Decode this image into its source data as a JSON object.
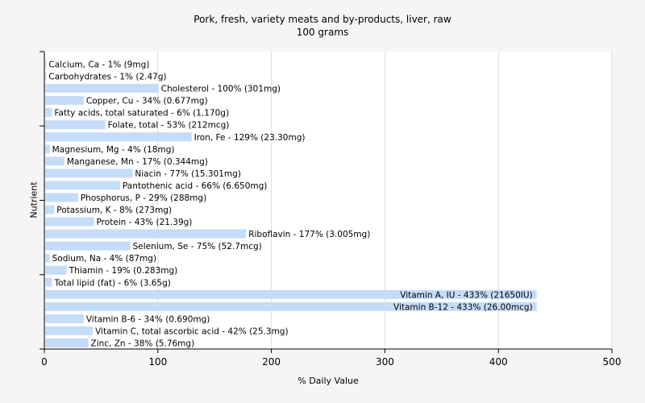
{
  "chart_data": {
    "type": "bar",
    "orientation": "horizontal",
    "title": "Pork, fresh, variety meats and by-products, liver, raw",
    "subtitle": "100 grams",
    "xlabel": "% Daily Value",
    "ylabel": "Nutrient",
    "xlim": [
      0,
      500
    ],
    "xticks": [
      0,
      100,
      200,
      300,
      400,
      500
    ],
    "grid": "vertical",
    "bar_color": "#c5dcf8",
    "categories": [
      "Calcium, Ca",
      "Carbohydrates",
      "Cholesterol",
      "Copper, Cu",
      "Fatty acids, total saturated",
      "Folate, total",
      "Iron, Fe",
      "Magnesium, Mg",
      "Manganese, Mn",
      "Niacin",
      "Pantothenic acid",
      "Phosphorus, P",
      "Potassium, K",
      "Protein",
      "Riboflavin",
      "Selenium, Se",
      "Sodium, Na",
      "Thiamin",
      "Total lipid (fat)",
      "Vitamin A, IU",
      "Vitamin B-12",
      "Vitamin B-6",
      "Vitamin C, total ascorbic acid",
      "Zinc, Zn"
    ],
    "values": [
      1,
      1,
      100,
      34,
      6,
      53,
      129,
      4,
      17,
      77,
      66,
      29,
      8,
      43,
      177,
      75,
      4,
      19,
      6,
      433,
      433,
      34,
      42,
      38
    ],
    "labels": [
      "Calcium, Ca - 1% (9mg)",
      "Carbohydrates - 1% (2.47g)",
      "Cholesterol - 100% (301mg)",
      "Copper, Cu - 34% (0.677mg)",
      "Fatty acids, total saturated - 6% (1.170g)",
      "Folate, total - 53% (212mcg)",
      "Iron, Fe - 129% (23.30mg)",
      "Magnesium, Mg - 4% (18mg)",
      "Manganese, Mn - 17% (0.344mg)",
      "Niacin - 77% (15.301mg)",
      "Pantothenic acid - 66% (6.650mg)",
      "Phosphorus, P - 29% (288mg)",
      "Potassium, K - 8% (273mg)",
      "Protein - 43% (21.39g)",
      "Riboflavin - 177% (3.005mg)",
      "Selenium, Se - 75% (52.7mcg)",
      "Sodium, Na - 4% (87mg)",
      "Thiamin - 19% (0.283mg)",
      "Total lipid (fat) - 6% (3.65g)",
      "Vitamin A, IU - 433% (21650IU)",
      "Vitamin B-12 - 433% (26.00mcg)",
      "Vitamin B-6 - 34% (0.690mg)",
      "Vitamin C, total ascorbic acid - 42% (25.3mg)",
      "Zinc, Zn - 38% (5.76mg)"
    ]
  }
}
